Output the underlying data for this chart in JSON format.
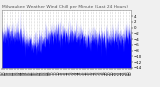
{
  "title": "Milwaukee Weather Wind Chill per Minute (Last 24 Hours)",
  "title_fontsize": 3.2,
  "title_color": "#555555",
  "background_color": "#f0f0f0",
  "plot_bg_color": "#ffffff",
  "line_color": "#0000ff",
  "fill_color": "#0000ff",
  "fill_alpha": 1.0,
  "grid_color": "#888888",
  "grid_style": "dotted",
  "num_points": 1440,
  "y_min": -14,
  "y_max": 6,
  "y_ticks": [
    4,
    2,
    0,
    -2,
    -4,
    -6,
    -8,
    -10,
    -12,
    -14
  ],
  "y_tick_fontsize": 2.8,
  "x_tick_fontsize": 2.5,
  "seed": 42
}
